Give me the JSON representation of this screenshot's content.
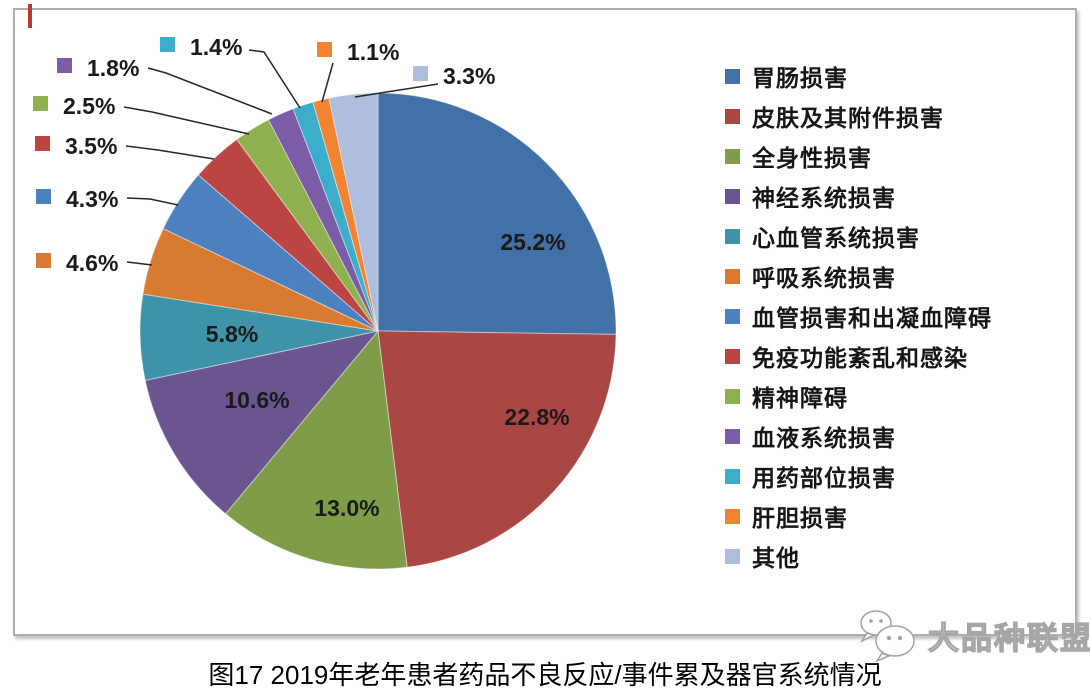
{
  "caption": "图17 2019年老年患者药品不良反应/事件累及器官系统情况",
  "watermark": {
    "text": "大品种联盟",
    "icon": "wechat-icon"
  },
  "chart_data": {
    "type": "pie",
    "title": "图17 2019年老年患者药品不良反应/事件累及器官系统情况",
    "legend_position": "right",
    "start_angle_deg": 0,
    "direction": "clockwise",
    "value_format": "percent",
    "slices": [
      {
        "label": "胃肠损害",
        "value": 25.2,
        "display": "25.2%",
        "color": "#4171A6"
      },
      {
        "label": "皮肤及其附件损害",
        "value": 22.8,
        "display": "22.8%",
        "color": "#A84743"
      },
      {
        "label": "全身性损害",
        "value": 13.0,
        "display": "13.0%",
        "color": "#7F9D48"
      },
      {
        "label": "神经系统损害",
        "value": 10.6,
        "display": "10.6%",
        "color": "#6A5591"
      },
      {
        "label": "心血管系统损害",
        "value": 5.8,
        "display": "5.8%",
        "color": "#3E93A9"
      },
      {
        "label": "呼吸系统损害",
        "value": 4.6,
        "display": "4.6%",
        "color": "#D87B30"
      },
      {
        "label": "血管损害和出凝血障碍",
        "value": 4.3,
        "display": "4.3%",
        "color": "#4C80BF"
      },
      {
        "label": "免疫功能紊乱和感染",
        "value": 3.5,
        "display": "3.5%",
        "color": "#BC4543"
      },
      {
        "label": "精神障碍",
        "value": 2.5,
        "display": "2.5%",
        "color": "#8EB04E"
      },
      {
        "label": "血液系统损害",
        "value": 1.8,
        "display": "1.8%",
        "color": "#7B5CA6"
      },
      {
        "label": "用药部位损害",
        "value": 1.4,
        "display": "1.4%",
        "color": "#3CAECB"
      },
      {
        "label": "肝胆损害",
        "value": 1.1,
        "display": "1.1%",
        "color": "#F08433"
      },
      {
        "label": "其他",
        "value": 3.3,
        "display": "3.3%",
        "color": "#AEBEDC"
      }
    ]
  }
}
